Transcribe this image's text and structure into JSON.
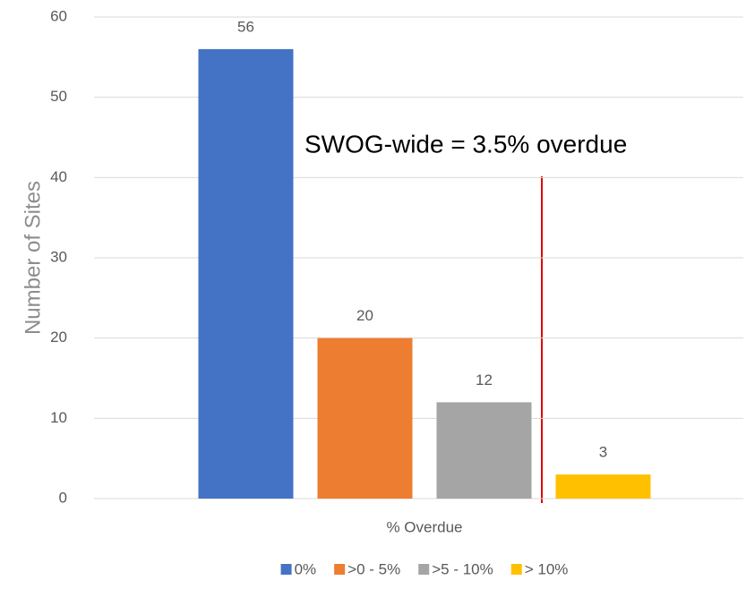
{
  "chart_data": {
    "type": "bar",
    "categories": [
      "% Overdue"
    ],
    "series": [
      {
        "name": "0%",
        "color": "#4472c4",
        "values": [
          56
        ]
      },
      {
        "name": ">0 - 5%",
        "color": "#ed7d31",
        "values": [
          20
        ]
      },
      {
        "name": ">5 - 10%",
        "color": "#a5a5a5",
        "values": [
          12
        ]
      },
      {
        "name": "> 10%",
        "color": "#ffc000",
        "values": [
          3
        ]
      }
    ],
    "y_label": "Number of Sites",
    "annotation": "SWOG-wide = 3.5% overdue",
    "ylim": [
      0,
      60
    ],
    "yticks": [
      0,
      10,
      20,
      30,
      40,
      50,
      60
    ],
    "grid": true,
    "legend": "bottom"
  }
}
